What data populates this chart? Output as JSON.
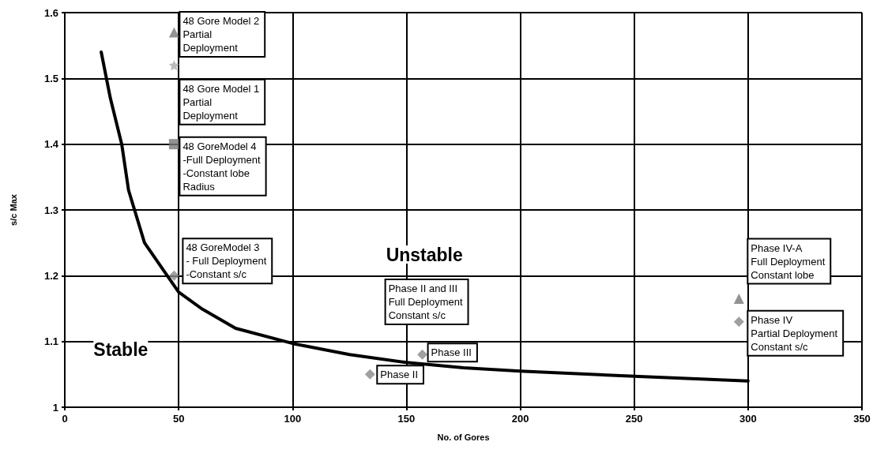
{
  "chart_data": {
    "type": "line",
    "xlabel": "No. of Gores",
    "ylabel": "s/c Max",
    "xlim": [
      0,
      350
    ],
    "xticks": [
      0,
      50,
      100,
      150,
      200,
      250,
      300,
      350
    ],
    "ylim": [
      1,
      1.6
    ],
    "yticks": [
      1,
      1.1,
      1.2,
      1.3,
      1.4,
      1.5,
      1.6
    ],
    "grid": true,
    "series": [
      {
        "color": "#000000",
        "marker": "none",
        "line_style": "solid",
        "x": [
          16,
          20,
          25,
          28,
          35,
          45,
          50,
          60,
          75,
          100,
          125,
          150,
          175,
          200,
          250,
          300
        ],
        "values": [
          1.54,
          1.47,
          1.4,
          1.33,
          1.25,
          1.2,
          1.175,
          1.15,
          1.12,
          1.097,
          1.08,
          1.068,
          1.06,
          1.055,
          1.047,
          1.04
        ]
      },
      {
        "type": "scatter",
        "color": "#777777",
        "marker": "triangle",
        "x": [
          48
        ],
        "values": [
          1.57
        ]
      },
      {
        "type": "scatter",
        "color": "#aaaaaa",
        "marker": "star",
        "x": [
          48
        ],
        "values": [
          1.52
        ]
      },
      {
        "type": "scatter",
        "color": "#777777",
        "marker": "square",
        "x": [
          48
        ],
        "values": [
          1.4
        ]
      },
      {
        "type": "scatter",
        "color": "#888888",
        "marker": "diamond",
        "x": [
          48
        ],
        "values": [
          1.2
        ]
      },
      {
        "type": "scatter",
        "color": "#888888",
        "marker": "diamond",
        "x": [
          134,
          157
        ],
        "values": [
          1.05,
          1.08
        ]
      },
      {
        "type": "scatter",
        "color": "#777777",
        "marker": "triangle",
        "x": [
          296
        ],
        "values": [
          1.165
        ]
      },
      {
        "type": "scatter",
        "color": "#888888",
        "marker": "diamond",
        "x": [
          296
        ],
        "values": [
          1.13
        ]
      }
    ],
    "annotations": [
      {
        "text": "48 Gore Model 2\nPartial\nDeployment",
        "x": 48,
        "y": 1.57
      },
      {
        "text": "48 Gore Model 1\nPartial\nDeployment",
        "x": 48,
        "y": 1.52
      },
      {
        "text": "48 GoreModel 4\n-Full Deployment\n-Constant lobe\nRadius",
        "x": 48,
        "y": 1.4
      },
      {
        "text": "48 GoreModel 3\n- Full Deployment\n-Constant s/c",
        "x": 48,
        "y": 1.2
      },
      "Phase II and III\nFull Deployment\nConstant s/c",
      {
        "text": "Phase III",
        "x": 157,
        "y": 1.08
      },
      {
        "text": "Phase II",
        "x": 134,
        "y": 1.05
      },
      {
        "text": "Phase IV-A\nFull Deployment\nConstant lobe",
        "x": 296,
        "y": 1.165
      },
      {
        "text": "Phase IV\nPartial Deployment\nConstant s/c",
        "x": 296,
        "y": 1.13
      },
      "Unstable",
      "Stable"
    ]
  }
}
